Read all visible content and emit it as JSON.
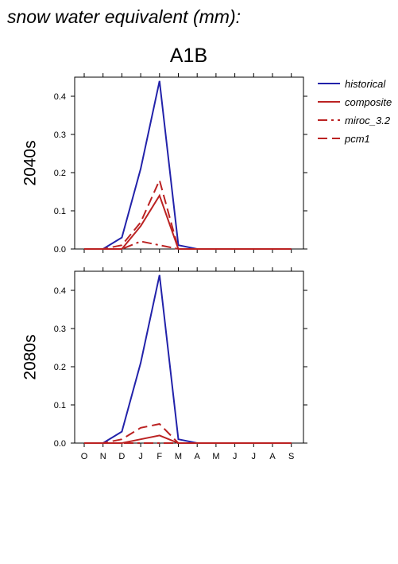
{
  "title": "snow water equivalent (mm):",
  "scenario": "A1B",
  "chart_data": [
    {
      "type": "line",
      "panel_label": "2040s",
      "x": [
        "O",
        "N",
        "D",
        "J",
        "F",
        "M",
        "A",
        "M",
        "J",
        "J",
        "A",
        "S"
      ],
      "ylim": [
        0,
        0.45
      ],
      "yticks": [
        "0.0",
        "0.1",
        "0.2",
        "0.3",
        "0.4"
      ],
      "show_x_tick_labels": false,
      "series": [
        {
          "name": "historical",
          "color": "#2222aa",
          "style": "solid",
          "values": [
            0,
            0,
            0.03,
            0.21,
            0.44,
            0.01,
            0,
            0,
            0,
            0,
            0,
            0
          ]
        },
        {
          "name": "composite",
          "color": "#bb2222",
          "style": "solid",
          "values": [
            0,
            0,
            0,
            0.06,
            0.14,
            0,
            0,
            0,
            0,
            0,
            0,
            0
          ]
        },
        {
          "name": "miroc_3.2",
          "color": "#bb2222",
          "style": "dashdot",
          "values": [
            0,
            0,
            0,
            0.02,
            0.01,
            0,
            0,
            0,
            0,
            0,
            0,
            0
          ]
        },
        {
          "name": "pcm1",
          "color": "#bb2222",
          "style": "dashed",
          "values": [
            0,
            0,
            0.01,
            0.07,
            0.18,
            0,
            0,
            0,
            0,
            0,
            0,
            0
          ]
        }
      ]
    },
    {
      "type": "line",
      "panel_label": "2080s",
      "x": [
        "O",
        "N",
        "D",
        "J",
        "F",
        "M",
        "A",
        "M",
        "J",
        "J",
        "A",
        "S"
      ],
      "ylim": [
        0,
        0.45
      ],
      "yticks": [
        "0.0",
        "0.1",
        "0.2",
        "0.3",
        "0.4"
      ],
      "show_x_tick_labels": true,
      "series": [
        {
          "name": "historical",
          "color": "#2222aa",
          "style": "solid",
          "values": [
            0,
            0,
            0.03,
            0.21,
            0.44,
            0.01,
            0,
            0,
            0,
            0,
            0,
            0
          ]
        },
        {
          "name": "composite",
          "color": "#bb2222",
          "style": "solid",
          "values": [
            0,
            0,
            0,
            0.01,
            0.02,
            0,
            0,
            0,
            0,
            0,
            0,
            0
          ]
        },
        {
          "name": "miroc_3.2",
          "color": "#bb2222",
          "style": "dashdot",
          "values": [
            0,
            0,
            0,
            0,
            0,
            0,
            0,
            0,
            0,
            0,
            0,
            0
          ]
        },
        {
          "name": "pcm1",
          "color": "#bb2222",
          "style": "dashed",
          "values": [
            0,
            0,
            0.01,
            0.04,
            0.05,
            0,
            0,
            0,
            0,
            0,
            0,
            0
          ]
        }
      ]
    }
  ],
  "legend": [
    {
      "label": "historical",
      "color": "#2222aa",
      "style": "solid"
    },
    {
      "label": "composite",
      "color": "#bb2222",
      "style": "solid"
    },
    {
      "label": "miroc_3.2",
      "color": "#bb2222",
      "style": "dashdot"
    },
    {
      "label": "pcm1",
      "color": "#bb2222",
      "style": "dashed"
    }
  ]
}
